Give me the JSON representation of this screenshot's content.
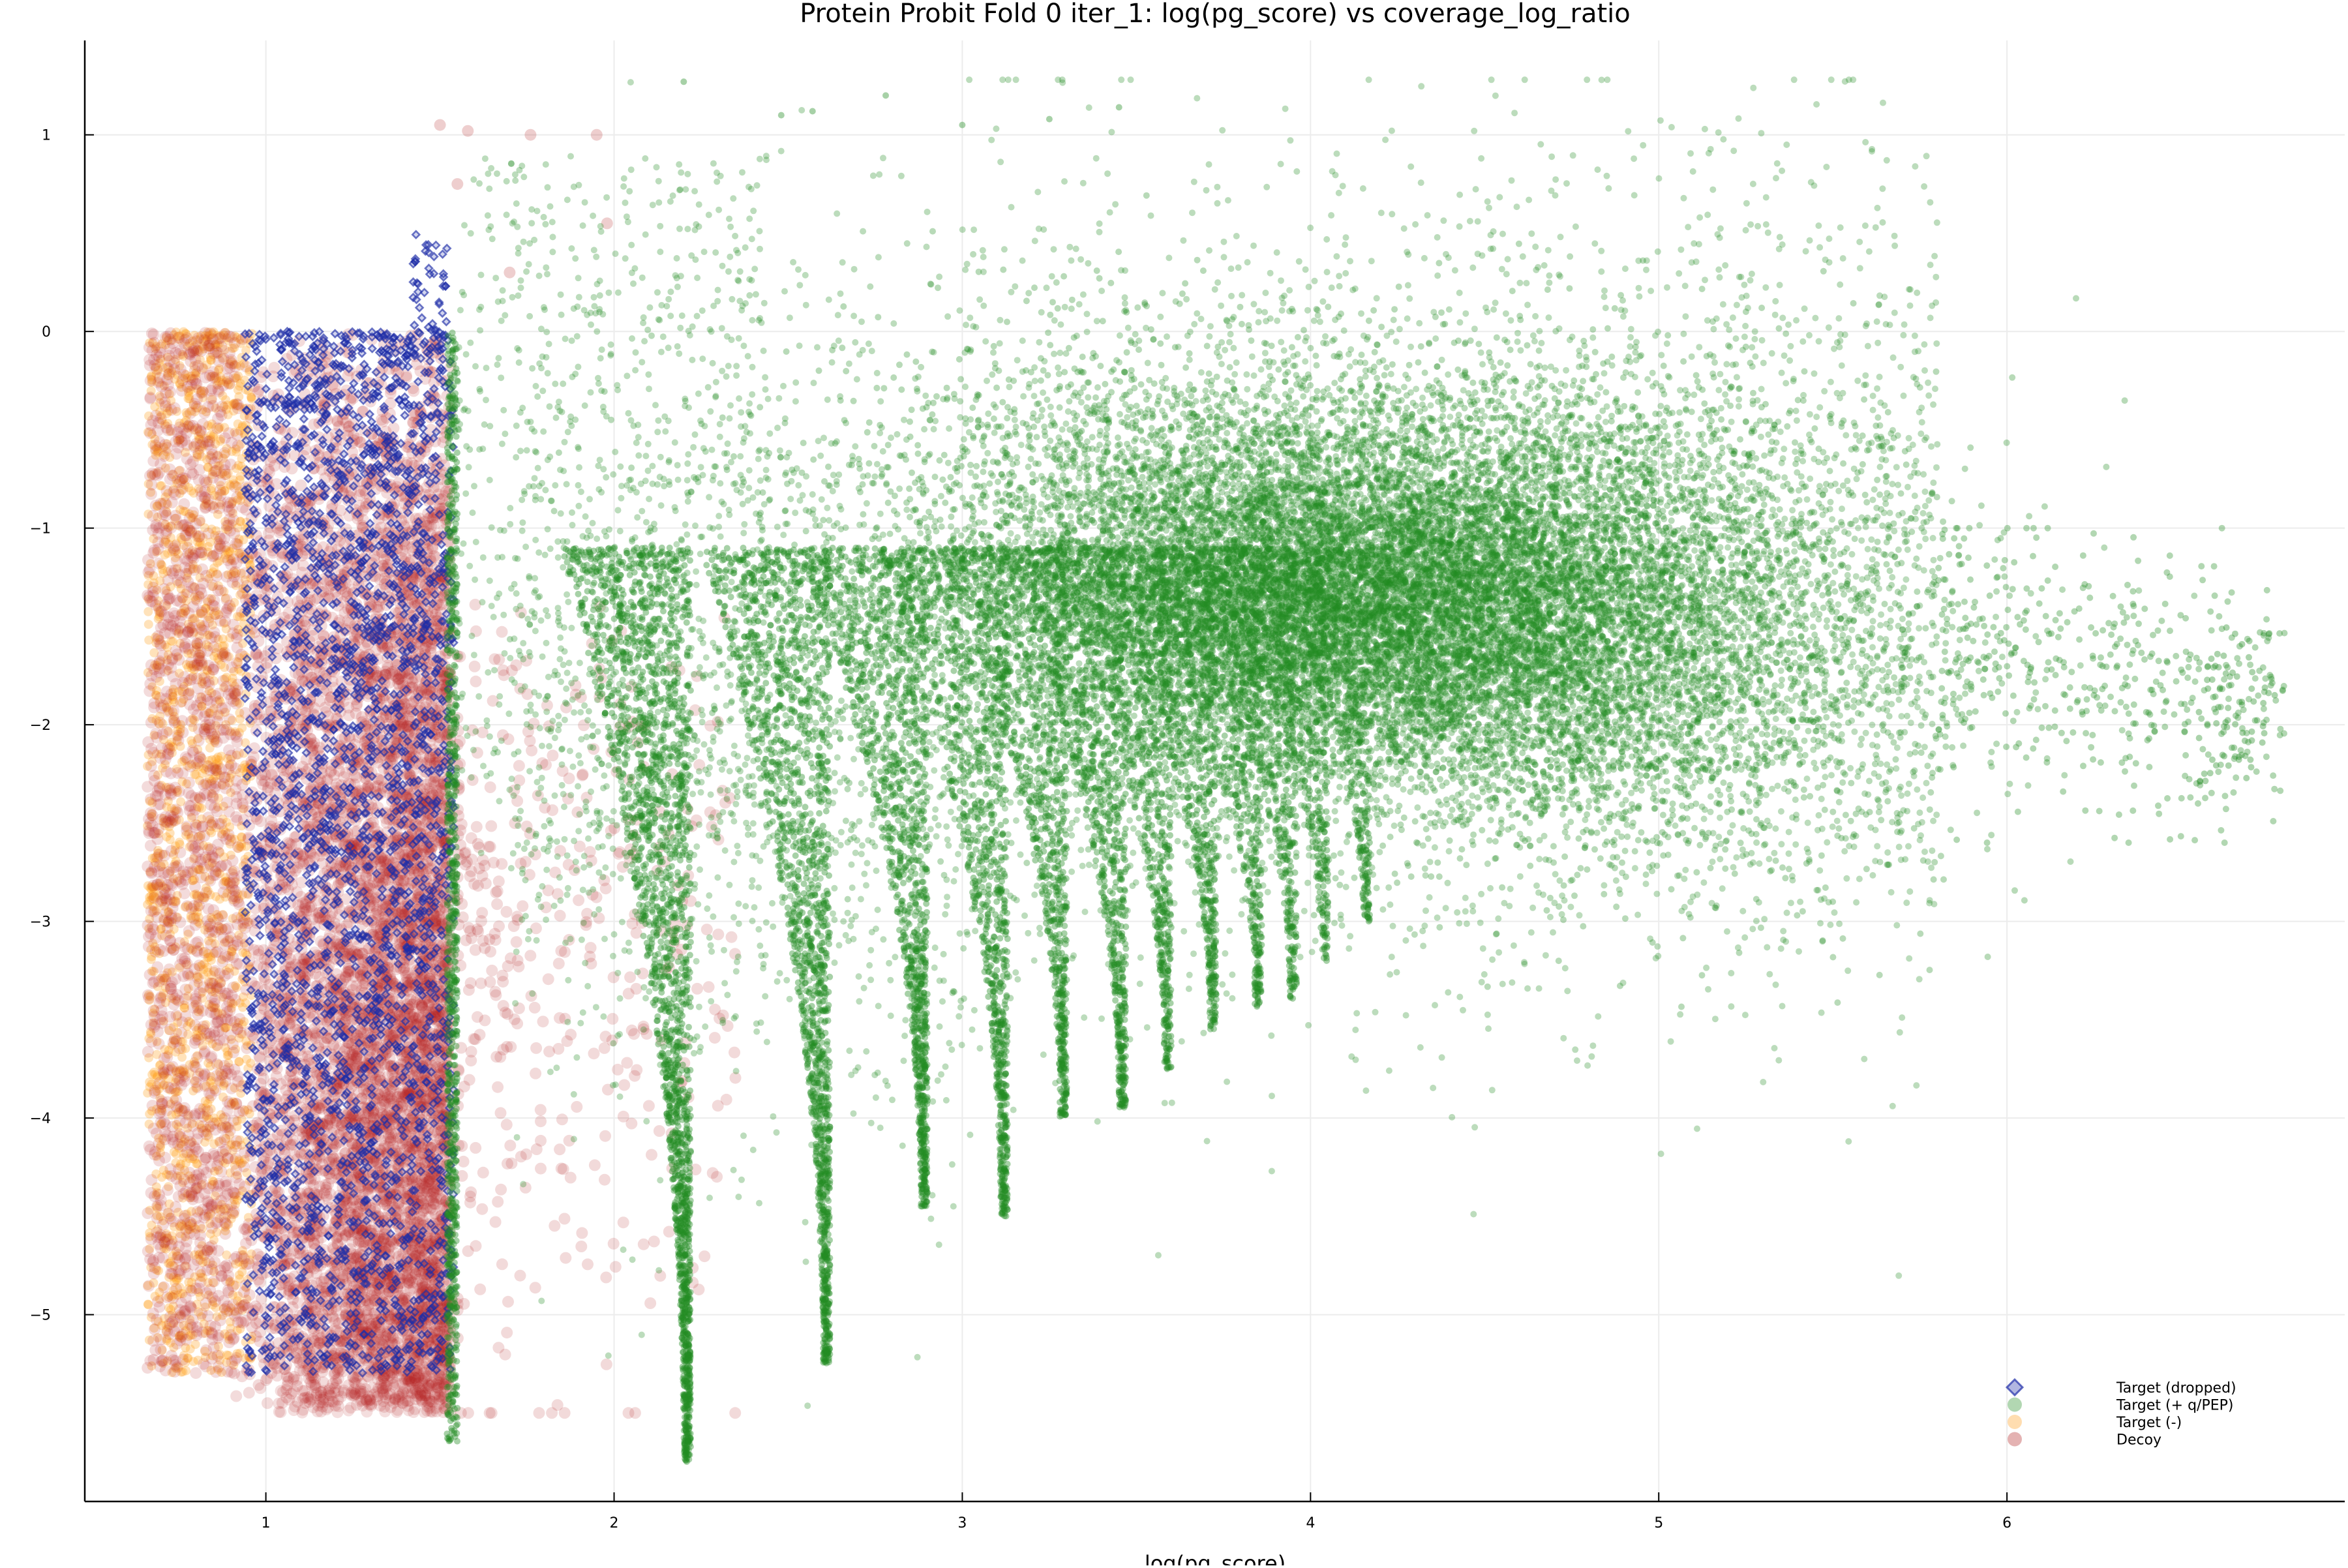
{
  "chart_data": {
    "type": "scatter",
    "title": "Protein Probit Fold 0 iter_1: log(pg_score) vs coverage_log_ratio",
    "xlabel": "log(pg_score)",
    "ylabel": "",
    "xlim": [
      0.48,
      6.97
    ],
    "ylim": [
      -5.95,
      1.48
    ],
    "x_ticks": [
      1,
      2,
      3,
      4,
      5,
      6
    ],
    "y_ticks": [
      1,
      0,
      -1,
      -2,
      -3,
      -4,
      -5
    ],
    "grid": true,
    "legend_position": "bottom-right",
    "series": [
      {
        "name": "Target (dropped)",
        "marker": "diamond",
        "color": "#1f2ea8",
        "description_of_extent": "x 0.95-1.55, y -5.4 to 0, plus sparse points up to 0.5 near x 1.45",
        "points_sample": [
          [
            1.0,
            -0.1
          ],
          [
            1.1,
            -0.6
          ],
          [
            1.2,
            -1.5
          ],
          [
            1.3,
            -2.2
          ],
          [
            1.4,
            -3.1
          ],
          [
            1.45,
            -4.0
          ],
          [
            1.5,
            -4.8
          ],
          [
            1.05,
            -3.6
          ],
          [
            1.25,
            -4.4
          ],
          [
            1.48,
            0.45
          ],
          [
            1.47,
            0.3
          ],
          [
            1.52,
            -5.3
          ]
        ]
      },
      {
        "name": "Target (+ q/PEP)",
        "marker": "circle",
        "color": "#228b22",
        "description_of_extent": "x 1.5-6.8, dense cloud centered near x 4.3, y -1.6; vertical streaks at x 2.22, 2.62, 2.9, 3.13, 3.3, 3.47, 3.6, 3.73, 3.86, 3.96, 4.05, 4.17",
        "points_sample": [
          [
            2.2,
            1.27
          ],
          [
            2.5,
            1.1
          ],
          [
            3.0,
            1.05
          ],
          [
            3.45,
            1.14
          ],
          [
            4.3,
            -1.6
          ],
          [
            4.6,
            -1.5
          ],
          [
            5.0,
            -1.8
          ],
          [
            5.5,
            -2.0
          ],
          [
            6.0,
            -1.8
          ],
          [
            6.5,
            -1.4
          ],
          [
            6.75,
            -1.6
          ],
          [
            2.22,
            -5.7
          ],
          [
            2.62,
            -5.2
          ],
          [
            2.9,
            -4.4
          ],
          [
            3.13,
            -4.5
          ],
          [
            3.47,
            -3.95
          ],
          [
            1.55,
            -5.65
          ]
        ]
      },
      {
        "name": "Target (-)",
        "marker": "circle",
        "color": "#ff9f1c",
        "description_of_extent": "x 0.65-0.95, y -5.3 to 0",
        "points_sample": [
          [
            0.7,
            -0.2
          ],
          [
            0.75,
            -1.0
          ],
          [
            0.8,
            -2.0
          ],
          [
            0.72,
            -3.0
          ],
          [
            0.85,
            -4.2
          ],
          [
            0.68,
            -5.2
          ]
        ]
      },
      {
        "name": "Decoy",
        "marker": "circle",
        "color": "#b22222",
        "description_of_extent": "x 0.65-1.55 dense, y -5.5 to 0; sparse tail to x 2.3 and scattered points up to y 1.05",
        "points_sample": [
          [
            0.7,
            -0.3
          ],
          [
            1.0,
            -2.5
          ],
          [
            1.3,
            -3.5
          ],
          [
            1.52,
            -4.5
          ],
          [
            1.5,
            1.05
          ],
          [
            1.58,
            1.02
          ],
          [
            1.76,
            1.0
          ],
          [
            1.95,
            1.0
          ],
          [
            1.9,
            -3.0
          ],
          [
            2.1,
            -3.8
          ],
          [
            2.3,
            -3.6
          ]
        ]
      }
    ]
  }
}
